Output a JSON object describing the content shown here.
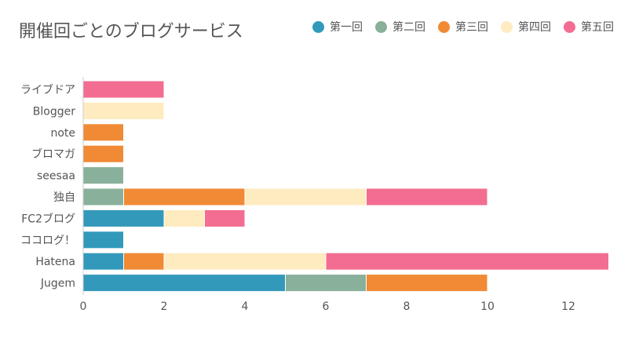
{
  "chart_data": {
    "type": "bar",
    "orientation": "horizontal",
    "stacked": true,
    "title": "開催回ごとのブログサービス",
    "xlabel": "",
    "ylabel": "",
    "xlim": [
      0,
      13
    ],
    "x_ticks": [
      "0",
      "2",
      "4",
      "6",
      "8",
      "10",
      "12"
    ],
    "categories": [
      "ライブドア",
      "Blogger",
      "note",
      "ブロマガ",
      "seesaa",
      "独自",
      "FC2ブログ",
      "ココログ！",
      "Hatena",
      "Jugem"
    ],
    "series": [
      {
        "name": "第一回",
        "color": "#3399bb",
        "values": [
          0,
          0,
          0,
          0,
          0,
          0,
          2,
          1,
          1,
          5
        ]
      },
      {
        "name": "第二回",
        "color": "#88b09a",
        "values": [
          0,
          0,
          0,
          0,
          1,
          1,
          0,
          0,
          0,
          2
        ]
      },
      {
        "name": "第三回",
        "color": "#f08a35",
        "values": [
          0,
          0,
          1,
          1,
          0,
          3,
          0,
          0,
          1,
          3
        ]
      },
      {
        "name": "第四回",
        "color": "#ffebc0",
        "values": [
          0,
          2,
          0,
          0,
          0,
          3,
          1,
          0,
          4,
          0
        ]
      },
      {
        "name": "第五回",
        "color": "#f26d91",
        "values": [
          2,
          0,
          0,
          0,
          0,
          3,
          1,
          0,
          7,
          0
        ]
      }
    ],
    "grid": false,
    "legend_position": "top-right"
  }
}
